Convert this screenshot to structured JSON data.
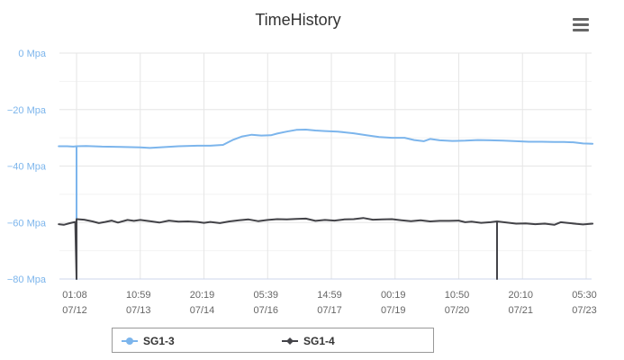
{
  "chart_data": {
    "type": "line",
    "title": "TimeHistory",
    "xlabel": "",
    "ylabel": "",
    "ylim": [
      -80,
      0
    ],
    "y_ticks": [
      0,
      -20,
      -40,
      -60,
      -80
    ],
    "y_tick_labels": [
      "0 Mpa",
      "−20 Mpa",
      "−40 Mpa",
      "−60 Mpa",
      "−80 Mpa"
    ],
    "x_ticks": [
      {
        "time": "01:08",
        "date": "07/12"
      },
      {
        "time": "10:59",
        "date": "07/13"
      },
      {
        "time": "20:19",
        "date": "07/14"
      },
      {
        "time": "05:39",
        "date": "07/16"
      },
      {
        "time": "14:59",
        "date": "07/17"
      },
      {
        "time": "00:19",
        "date": "07/19"
      },
      {
        "time": "10:50",
        "date": "07/20"
      },
      {
        "time": "20:10",
        "date": "07/21"
      },
      {
        "time": "05:30",
        "date": "07/23"
      }
    ],
    "grid": true,
    "legend_position": "bottom",
    "x_range": [
      -0.28,
      8.1
    ],
    "series": [
      {
        "name": "SG1-3",
        "color": "#7cb5ec",
        "points": [
          [
            -0.28,
            -33.0
          ],
          [
            -0.15,
            -33.0
          ],
          [
            -0.05,
            -33.1
          ],
          [
            0.0,
            -33.0
          ],
          [
            0.0,
            -80.0
          ],
          [
            0.0,
            -33.0
          ],
          [
            0.15,
            -32.9
          ],
          [
            0.4,
            -33.1
          ],
          [
            0.7,
            -33.2
          ],
          [
            1.0,
            -33.4
          ],
          [
            1.15,
            -33.6
          ],
          [
            1.3,
            -33.4
          ],
          [
            1.6,
            -33.0
          ],
          [
            1.9,
            -32.8
          ],
          [
            2.1,
            -32.8
          ],
          [
            2.3,
            -32.5
          ],
          [
            2.45,
            -30.8
          ],
          [
            2.6,
            -29.5
          ],
          [
            2.75,
            -28.9
          ],
          [
            2.9,
            -29.2
          ],
          [
            3.05,
            -29.1
          ],
          [
            3.15,
            -28.5
          ],
          [
            3.3,
            -27.8
          ],
          [
            3.45,
            -27.2
          ],
          [
            3.6,
            -27.1
          ],
          [
            3.75,
            -27.4
          ],
          [
            3.9,
            -27.6
          ],
          [
            4.1,
            -27.8
          ],
          [
            4.35,
            -28.4
          ],
          [
            4.55,
            -29.1
          ],
          [
            4.75,
            -29.7
          ],
          [
            4.95,
            -30.0
          ],
          [
            5.15,
            -30.0
          ],
          [
            5.3,
            -30.8
          ],
          [
            5.45,
            -31.2
          ],
          [
            5.55,
            -30.4
          ],
          [
            5.7,
            -30.9
          ],
          [
            5.9,
            -31.1
          ],
          [
            6.1,
            -31.0
          ],
          [
            6.3,
            -30.8
          ],
          [
            6.5,
            -30.9
          ],
          [
            6.7,
            -31.0
          ],
          [
            6.9,
            -31.2
          ],
          [
            7.1,
            -31.4
          ],
          [
            7.3,
            -31.4
          ],
          [
            7.5,
            -31.5
          ],
          [
            7.65,
            -31.5
          ],
          [
            7.8,
            -31.6
          ],
          [
            7.95,
            -32.0
          ],
          [
            8.1,
            -32.1
          ]
        ]
      },
      {
        "name": "SG1-4",
        "color": "#434348",
        "points": [
          [
            -0.28,
            -60.6
          ],
          [
            -0.2,
            -60.8
          ],
          [
            -0.1,
            -60.2
          ],
          [
            -0.02,
            -59.8
          ],
          [
            0.0,
            -80.0
          ],
          [
            0.0,
            -58.8
          ],
          [
            0.12,
            -59.0
          ],
          [
            0.25,
            -59.6
          ],
          [
            0.35,
            -60.2
          ],
          [
            0.45,
            -59.8
          ],
          [
            0.55,
            -59.3
          ],
          [
            0.65,
            -60.0
          ],
          [
            0.8,
            -59.1
          ],
          [
            0.9,
            -59.4
          ],
          [
            1.0,
            -59.1
          ],
          [
            1.15,
            -59.5
          ],
          [
            1.3,
            -60.0
          ],
          [
            1.45,
            -59.3
          ],
          [
            1.6,
            -59.7
          ],
          [
            1.75,
            -59.6
          ],
          [
            1.9,
            -59.8
          ],
          [
            2.0,
            -60.1
          ],
          [
            2.1,
            -59.8
          ],
          [
            2.25,
            -60.2
          ],
          [
            2.4,
            -59.6
          ],
          [
            2.55,
            -59.2
          ],
          [
            2.7,
            -58.9
          ],
          [
            2.85,
            -59.5
          ],
          [
            3.0,
            -59.1
          ],
          [
            3.15,
            -58.8
          ],
          [
            3.3,
            -58.9
          ],
          [
            3.45,
            -58.7
          ],
          [
            3.6,
            -58.6
          ],
          [
            3.75,
            -59.4
          ],
          [
            3.9,
            -59.1
          ],
          [
            4.05,
            -59.3
          ],
          [
            4.2,
            -58.9
          ],
          [
            4.35,
            -58.8
          ],
          [
            4.5,
            -58.4
          ],
          [
            4.65,
            -59.0
          ],
          [
            4.8,
            -58.9
          ],
          [
            4.95,
            -58.8
          ],
          [
            5.1,
            -59.2
          ],
          [
            5.25,
            -59.5
          ],
          [
            5.4,
            -59.2
          ],
          [
            5.55,
            -59.6
          ],
          [
            5.7,
            -59.4
          ],
          [
            5.85,
            -59.4
          ],
          [
            6.0,
            -59.3
          ],
          [
            6.1,
            -59.9
          ],
          [
            6.2,
            -59.7
          ],
          [
            6.35,
            -60.1
          ],
          [
            6.5,
            -59.9
          ],
          [
            6.6,
            -59.6
          ],
          [
            6.6,
            -80.0
          ],
          [
            6.6,
            -59.6
          ],
          [
            6.75,
            -60.0
          ],
          [
            6.9,
            -60.4
          ],
          [
            7.05,
            -60.3
          ],
          [
            7.2,
            -60.6
          ],
          [
            7.35,
            -60.4
          ],
          [
            7.5,
            -60.8
          ],
          [
            7.6,
            -59.9
          ],
          [
            7.7,
            -60.1
          ],
          [
            7.85,
            -60.5
          ],
          [
            7.95,
            -60.7
          ],
          [
            8.1,
            -60.4
          ]
        ]
      }
    ]
  },
  "toolbar": {
    "menu_icon": "hamburger-menu-icon"
  },
  "legend": {
    "items": [
      {
        "label": "SG1-3",
        "color": "#7cb5ec"
      },
      {
        "label": "SG1-4",
        "color": "#434348"
      }
    ]
  }
}
